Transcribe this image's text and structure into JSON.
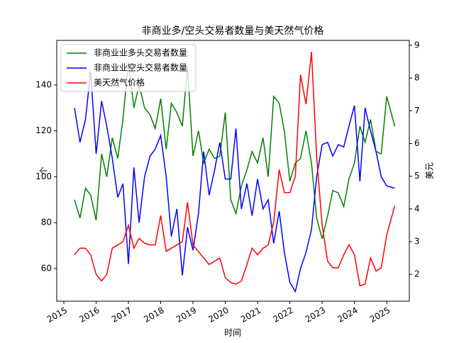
{
  "chart_data": {
    "type": "line",
    "title": "非商业多/空头交易者数量与美天然气价格",
    "x_label": "时间",
    "y_label": "个",
    "y2_label": "美元",
    "x": [
      2015.33,
      2015.5,
      2015.67,
      2015.83,
      2016,
      2016.17,
      2016.33,
      2016.5,
      2016.67,
      2016.83,
      2017,
      2017.17,
      2017.33,
      2017.5,
      2017.67,
      2017.83,
      2018,
      2018.17,
      2018.33,
      2018.5,
      2018.67,
      2018.83,
      2019,
      2019.17,
      2019.33,
      2019.5,
      2019.67,
      2019.83,
      2020,
      2020.17,
      2020.33,
      2020.5,
      2020.67,
      2020.83,
      2021,
      2021.17,
      2021.33,
      2021.5,
      2021.67,
      2021.83,
      2022,
      2022.17,
      2022.33,
      2022.5,
      2022.67,
      2022.83,
      2023,
      2023.17,
      2023.33,
      2023.5,
      2023.67,
      2023.83,
      2024,
      2024.17,
      2024.33,
      2024.5,
      2024.67,
      2024.83,
      2025,
      2025.25
    ],
    "series": [
      {
        "name": "非商业业多头交易者数量",
        "color": "#008000",
        "values": [
          90,
          82,
          95,
          92,
          81,
          110,
          100,
          117,
          108,
          125,
          150,
          130,
          140,
          130,
          127,
          121,
          134,
          112,
          132,
          128,
          122,
          148,
          109,
          120,
          106,
          112,
          108,
          109,
          128,
          90,
          84,
          96,
          103,
          111,
          106,
          117,
          100,
          135,
          132,
          120,
          98,
          106,
          108,
          120,
          106,
          82,
          73,
          83,
          94,
          93,
          87,
          99,
          106,
          122,
          115,
          125,
          111,
          110,
          135,
          122
        ]
      },
      {
        "name": "非商业业空头交易者数量",
        "color": "#0000ff",
        "values": [
          130,
          115,
          125,
          146,
          110,
          133,
          122,
          108,
          91,
          97,
          62,
          104,
          80,
          100,
          109,
          112,
          118,
          100,
          74,
          86,
          57,
          78,
          68,
          84,
          111,
          92,
          103,
          115,
          99,
          99,
          121,
          86,
          97,
          83,
          99,
          86,
          90,
          71,
          85,
          67,
          54,
          50,
          60,
          67,
          77,
          100,
          114,
          115,
          109,
          114,
          113,
          122,
          131,
          98,
          130,
          120,
          111,
          100,
          96,
          95
        ]
      },
      {
        "name": "美天然气价格",
        "color": "#ff0000",
        "axis": "y2",
        "values": [
          2.6,
          2.8,
          2.8,
          2.6,
          2.0,
          1.8,
          2.0,
          2.8,
          2.9,
          3.0,
          3.5,
          2.8,
          3.1,
          2.95,
          2.9,
          2.9,
          3.8,
          2.7,
          2.8,
          2.9,
          3.0,
          4.2,
          2.9,
          2.7,
          2.5,
          2.3,
          2.4,
          2.5,
          1.9,
          1.75,
          1.7,
          1.8,
          2.3,
          2.8,
          2.6,
          2.8,
          2.9,
          3.6,
          5.2,
          4.5,
          4.5,
          5.0,
          8.1,
          7.2,
          8.8,
          5.6,
          3.5,
          2.4,
          2.2,
          2.2,
          2.6,
          2.9,
          2.6,
          1.65,
          1.7,
          2.5,
          2.1,
          2.2,
          3.2,
          4.1
        ]
      }
    ],
    "xlim": [
      2014.78,
      2025.7
    ],
    "xticks": [
      2015,
      2016,
      2017,
      2018,
      2019,
      2020,
      2021,
      2022,
      2023,
      2024,
      2025
    ],
    "ylim": [
      45.8,
      159.4
    ],
    "yticks": [
      60,
      80,
      100,
      120,
      140
    ],
    "y2lim": [
      1.18,
      9.15
    ],
    "y2ticks": [
      2,
      3,
      4,
      5,
      6,
      7,
      8,
      9
    ],
    "legend": "upper left"
  }
}
